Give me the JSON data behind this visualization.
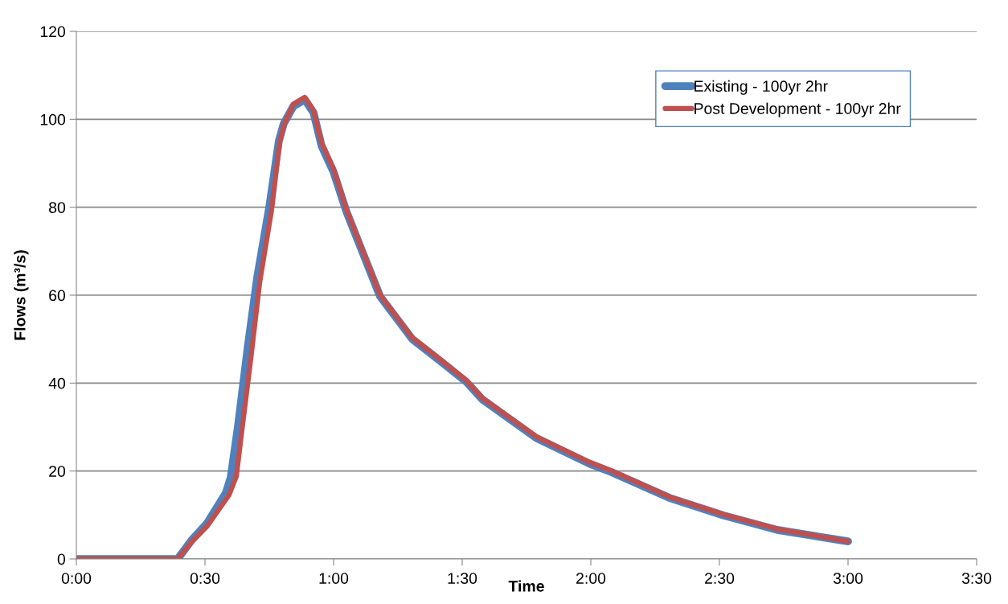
{
  "chart_data": {
    "type": "line",
    "xlabel": "Time",
    "ylabel": "Flows (m³/s)",
    "xlim": [
      0,
      3.5
    ],
    "xticks": [
      {
        "value": 0,
        "label": "0:00"
      },
      {
        "value": 0.5,
        "label": "0:30"
      },
      {
        "value": 1,
        "label": "1:00"
      },
      {
        "value": 1.5,
        "label": "1:30"
      },
      {
        "value": 2,
        "label": "2:00"
      },
      {
        "value": 2.5,
        "label": "2:30"
      },
      {
        "value": 3,
        "label": "3:00"
      },
      {
        "value": 3.5,
        "label": "3:30"
      }
    ],
    "ylim": [
      0,
      120
    ],
    "yticks": [
      0,
      20,
      40,
      60,
      80,
      100,
      120
    ],
    "grid": "y",
    "legend": "top right",
    "marker": "none",
    "line_style": "solid",
    "series": [
      {
        "name": "Existing - 100yr 2hr",
        "color": "#4f81bd",
        "x": [
          0,
          0.394,
          0.447,
          0.509,
          0.581,
          0.6,
          0.628,
          0.666,
          0.703,
          0.75,
          0.787,
          0.806,
          0.844,
          0.888,
          0.922,
          0.953,
          1.0,
          1.05,
          1.1,
          1.181,
          1.306,
          1.413,
          1.516,
          1.578,
          1.788,
          1.994,
          2.078,
          2.306,
          2.516,
          2.725,
          3.0
        ],
        "values": [
          0,
          0,
          4.2,
          8.2,
          15,
          18.5,
          30,
          48,
          64,
          80,
          95,
          99,
          103,
          104.5,
          101.5,
          94,
          88,
          79,
          71.6,
          59.7,
          50,
          45.1,
          40.3,
          36.3,
          27.5,
          21.7,
          19.8,
          13.9,
          9.9,
          6.6,
          4
        ]
      },
      {
        "name": "Post Development - 100yr 2hr",
        "color": "#c0504d",
        "x": [
          0,
          0.394,
          0.447,
          0.509,
          0.594,
          0.622,
          0.641,
          0.678,
          0.713,
          0.759,
          0.791,
          0.809,
          0.844,
          0.888,
          0.922,
          0.953,
          1.0,
          1.05,
          1.1,
          1.181,
          1.306,
          1.413,
          1.516,
          1.578,
          1.788,
          1.994,
          2.078,
          2.306,
          2.516,
          2.725,
          3.0
        ],
        "values": [
          0,
          0,
          3.8,
          7.5,
          14.6,
          18.8,
          28,
          45.5,
          63,
          79.4,
          95,
          99,
          103.5,
          105,
          102,
          94.7,
          88.7,
          79.4,
          72,
          60,
          50.3,
          45.4,
          40.6,
          36.6,
          27.8,
          22,
          20.1,
          14.1,
          10.1,
          6.8,
          4
        ]
      }
    ]
  }
}
